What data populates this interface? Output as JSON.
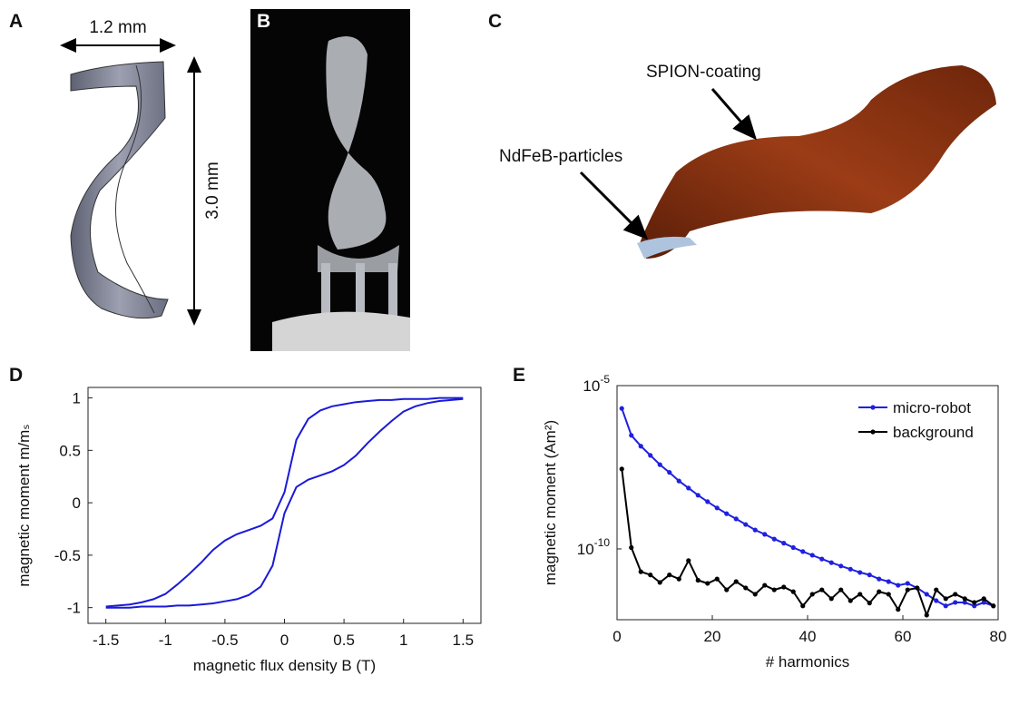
{
  "panels": {
    "A": {
      "label": "A",
      "width_label": "1.2 mm",
      "height_label": "3.0 mm"
    },
    "B": {
      "label": "B"
    },
    "C": {
      "label": "C",
      "annotations": [
        "SPION-coating",
        "NdFeB-particles"
      ]
    }
  },
  "chart_data": [
    {
      "label": "D",
      "type": "line",
      "xlabel": "magnetic flux density B (T)",
      "ylabel": "magnetic moment m/mₛ",
      "x": [
        -1.5,
        -1.4,
        -1.3,
        -1.2,
        -1.1,
        -1.0,
        -0.9,
        -0.8,
        -0.7,
        -0.6,
        -0.5,
        -0.4,
        -0.3,
        -0.2,
        -0.1,
        0,
        0.1,
        0.2,
        0.3,
        0.4,
        0.5,
        0.6,
        0.7,
        0.8,
        0.9,
        1.0,
        1.1,
        1.2,
        1.3,
        1.4,
        1.5
      ],
      "series": [
        {
          "color": "#1a1ad8",
          "values": [
            -0.99,
            -0.98,
            -0.97,
            -0.95,
            -0.92,
            -0.87,
            -0.78,
            -0.68,
            -0.57,
            -0.45,
            -0.36,
            -0.3,
            -0.26,
            -0.22,
            -0.15,
            0.1,
            0.6,
            0.8,
            0.88,
            0.92,
            0.94,
            0.96,
            0.97,
            0.98,
            0.98,
            0.99,
            0.99,
            0.99,
            1,
            1,
            1
          ]
        },
        {
          "color": "#1a1ad8",
          "values": [
            -1,
            -1,
            -1,
            -0.99,
            -0.99,
            -0.99,
            -0.98,
            -0.98,
            -0.97,
            -0.96,
            -0.94,
            -0.92,
            -0.88,
            -0.8,
            -0.6,
            -0.1,
            0.15,
            0.22,
            0.26,
            0.3,
            0.36,
            0.45,
            0.57,
            0.68,
            0.78,
            0.87,
            0.92,
            0.95,
            0.97,
            0.98,
            0.99
          ]
        }
      ],
      "xlim": [
        -1.65,
        1.65
      ],
      "ylim": [
        -1.15,
        1.1
      ],
      "xticks": [
        -1.5,
        -1,
        -0.5,
        0,
        0.5,
        1,
        1.5
      ],
      "yticks": [
        -1,
        -0.5,
        0,
        0.5,
        1
      ],
      "grid": false
    },
    {
      "label": "E",
      "type": "line",
      "markers": true,
      "yscale": "log",
      "legend": "upper right",
      "xlabel": "# harmonics",
      "ylabel": "magnetic moment (Am²)",
      "x": [
        1,
        3,
        5,
        7,
        9,
        11,
        13,
        15,
        17,
        19,
        21,
        23,
        25,
        27,
        29,
        31,
        33,
        35,
        37,
        39,
        41,
        43,
        45,
        47,
        49,
        51,
        53,
        55,
        57,
        59,
        61,
        63,
        65,
        67,
        69,
        71,
        73,
        75,
        77,
        79
      ],
      "series": [
        {
          "name": "micro-robot",
          "color": "#2020e0",
          "values": [
            2e-06,
            3e-07,
            1.4e-07,
            7.3e-08,
            3.8e-08,
            2.2e-08,
            1.2e-08,
            7.3e-09,
            4.4e-09,
            2.8e-09,
            1.8e-09,
            1.2e-09,
            8.3e-10,
            5.6e-10,
            3.8e-10,
            2.8e-10,
            2e-10,
            1.5e-10,
            1.1e-10,
            8.3e-11,
            6.4e-11,
            4.9e-11,
            3.8e-11,
            3e-11,
            2.4e-11,
            1.9e-11,
            1.6e-11,
            1.2e-11,
            1e-11,
            7.7e-12,
            8.8e-12,
            6.4e-12,
            4.1e-12,
            2.6e-12,
            1.8e-12,
            2.3e-12,
            2.3e-12,
            1.8e-12,
            2.3e-12,
            1.8e-12
          ]
        },
        {
          "name": "background",
          "color": "#000000",
          "values": [
            2.8e-08,
            1.1e-10,
            2e-11,
            1.6e-11,
            9.4e-12,
            1.6e-11,
            1.2e-11,
            4.4e-11,
            1.1e-11,
            8.8e-12,
            1.2e-11,
            5.6e-12,
            1e-11,
            6.4e-12,
            4.1e-12,
            7.7e-12,
            5.6e-12,
            6.8e-12,
            4.9e-12,
            1.8e-12,
            4.1e-12,
            5.6e-12,
            3e-12,
            5.6e-12,
            2.6e-12,
            4.1e-12,
            2.2e-12,
            4.9e-12,
            4.1e-12,
            1.4e-12,
            5.6e-12,
            6.4e-12,
            9.4e-13,
            5.6e-12,
            3e-12,
            4.1e-12,
            3e-12,
            2.3e-12,
            3e-12,
            1.8e-12
          ]
        }
      ],
      "xlim": [
        0,
        80
      ],
      "ylim": [
        6.8e-13,
        1e-05
      ],
      "xticks": [
        0,
        20,
        40,
        60,
        80
      ],
      "yticks": [
        {
          "value": 1e-10,
          "label": "10",
          "exponent": "-10"
        },
        {
          "value": 1e-05,
          "label": "10",
          "exponent": "-5"
        }
      ],
      "grid": false
    }
  ]
}
